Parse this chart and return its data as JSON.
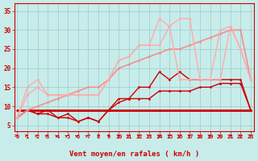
{
  "xlabel": "Vent moyen/en rafales ( km/h )",
  "background_color": "#c8ecea",
  "grid_color": "#99cccc",
  "x": [
    0,
    1,
    2,
    3,
    4,
    5,
    6,
    7,
    8,
    9,
    10,
    11,
    12,
    13,
    14,
    15,
    16,
    17,
    18,
    19,
    20,
    21,
    22,
    23
  ],
  "ylim": [
    3.5,
    37
  ],
  "xlim": [
    -0.3,
    23.3
  ],
  "yticks": [
    5,
    10,
    15,
    20,
    25,
    30,
    35
  ],
  "series": [
    {
      "name": "horizontal_line",
      "y": [
        9,
        9,
        9,
        9,
        9,
        9,
        9,
        9,
        9,
        9,
        9,
        9,
        9,
        9,
        9,
        9,
        9,
        9,
        9,
        9,
        9,
        9,
        9,
        9
      ],
      "color": "#cc0000",
      "lw": 2.0,
      "marker": null,
      "ms": 0
    },
    {
      "name": "dark_lower",
      "y": [
        7,
        9,
        8,
        8,
        7,
        7,
        6,
        7,
        6,
        9,
        11,
        12,
        12,
        12,
        14,
        14,
        14,
        14,
        15,
        15,
        16,
        16,
        16,
        9
      ],
      "color": "#cc0000",
      "lw": 1.0,
      "marker": "o",
      "ms": 2.0
    },
    {
      "name": "dark_upper",
      "y": [
        7,
        9,
        8,
        9,
        7,
        8,
        6,
        7,
        6,
        9,
        12,
        12,
        15,
        15,
        19,
        17,
        19,
        17,
        17,
        17,
        17,
        17,
        17,
        9
      ],
      "color": "#cc0000",
      "lw": 1.0,
      "marker": "o",
      "ms": 2.0
    },
    {
      "name": "pink_linear",
      "y": [
        7,
        9,
        10,
        11,
        12,
        13,
        14,
        15,
        15,
        17,
        20,
        21,
        22,
        23,
        24,
        25,
        25,
        26,
        27,
        28,
        29,
        30,
        30,
        17
      ],
      "color": "#f09090",
      "lw": 1.2,
      "marker": "o",
      "ms": 2.0
    },
    {
      "name": "light_lower",
      "y": [
        7,
        13,
        15,
        13,
        13,
        13,
        13,
        13,
        13,
        17,
        22,
        23,
        26,
        26,
        26,
        31,
        17,
        17,
        17,
        17,
        17,
        31,
        25,
        17
      ],
      "color": "#ffaaaa",
      "lw": 1.0,
      "marker": "o",
      "ms": 2.0
    },
    {
      "name": "light_upper",
      "y": [
        7,
        15,
        17,
        13,
        13,
        13,
        13,
        13,
        13,
        17,
        22,
        23,
        26,
        26,
        33,
        31,
        33,
        33,
        17,
        17,
        30,
        31,
        25,
        17
      ],
      "color": "#ffaaaa",
      "lw": 1.0,
      "marker": "o",
      "ms": 2.0
    }
  ],
  "wind_angles": [
    270,
    270,
    250,
    240,
    240,
    230,
    230,
    230,
    220,
    210,
    210,
    210,
    210,
    210,
    210,
    210,
    210,
    200,
    200,
    200,
    200,
    200,
    200,
    200
  ]
}
